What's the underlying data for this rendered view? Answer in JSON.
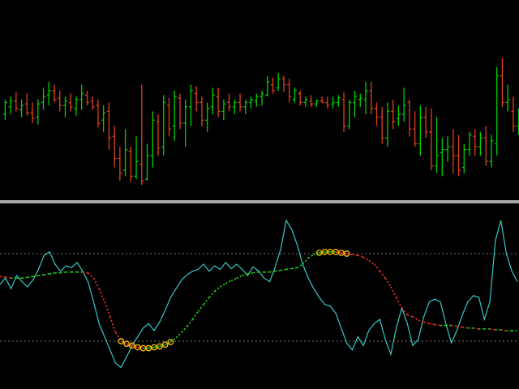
{
  "colors": {
    "background": "#000000",
    "bull": "#00d000",
    "bear": "#e0401e",
    "separator": "#a8a8a8",
    "oscillator": "#38c8c8",
    "signal_up": "#20e020",
    "signal_down": "#ff3030",
    "marker_ring": "#ffc000",
    "level_line": "#7a7a7a"
  },
  "chart_data": [
    {
      "type": "ohlc",
      "grid": false,
      "ylim": [
        0,
        100
      ],
      "bars": [
        [
          50,
          46,
          60,
          58
        ],
        [
          55,
          50,
          62,
          59
        ],
        [
          59,
          52,
          65,
          54
        ],
        [
          53,
          48,
          60,
          56
        ],
        [
          57,
          49,
          64,
          51
        ],
        [
          51,
          44,
          58,
          47
        ],
        [
          48,
          43,
          60,
          57
        ],
        [
          58,
          53,
          68,
          62
        ],
        [
          63,
          56,
          72,
          66
        ],
        [
          66,
          58,
          70,
          60
        ],
        [
          61,
          52,
          66,
          56
        ],
        [
          56,
          48,
          62,
          59
        ],
        [
          58,
          52,
          64,
          55
        ],
        [
          54,
          49,
          62,
          60
        ],
        [
          60,
          53,
          70,
          64
        ],
        [
          63,
          56,
          66,
          58
        ],
        [
          59,
          53,
          62,
          55
        ],
        [
          56,
          41,
          60,
          44
        ],
        [
          46,
          38,
          56,
          51
        ],
        [
          52,
          26,
          58,
          34
        ],
        [
          35,
          14,
          42,
          20
        ],
        [
          20,
          5,
          28,
          10
        ],
        [
          12,
          8,
          40,
          26
        ],
        [
          25,
          4,
          28,
          8
        ],
        [
          8,
          6,
          35,
          18
        ],
        [
          16,
          2,
          70,
          5
        ],
        [
          6,
          5,
          30,
          22
        ],
        [
          22,
          14,
          52,
          46
        ],
        [
          45,
          22,
          50,
          27
        ],
        [
          28,
          22,
          63,
          58
        ],
        [
          56,
          35,
          61,
          40
        ],
        [
          42,
          32,
          66,
          62
        ],
        [
          61,
          40,
          64,
          44
        ],
        [
          44,
          28,
          60,
          55
        ],
        [
          55,
          42,
          70,
          66
        ],
        [
          64,
          52,
          69,
          58
        ],
        [
          58,
          42,
          62,
          46
        ],
        [
          46,
          38,
          58,
          54
        ],
        [
          55,
          50,
          68,
          63
        ],
        [
          62,
          48,
          68,
          52
        ],
        [
          52,
          46,
          60,
          57
        ],
        [
          58,
          52,
          64,
          55
        ],
        [
          55,
          50,
          60,
          58
        ],
        [
          58,
          52,
          64,
          55
        ],
        [
          55,
          50,
          60,
          58
        ],
        [
          58,
          54,
          62,
          60
        ],
        [
          59,
          55,
          64,
          62
        ],
        [
          62,
          56,
          66,
          64
        ],
        [
          63,
          62,
          76,
          72
        ],
        [
          70,
          64,
          75,
          66
        ],
        [
          68,
          66,
          78,
          74
        ],
        [
          74,
          65,
          76,
          70
        ],
        [
          70,
          58,
          74,
          62
        ],
        [
          60,
          58,
          68,
          66
        ],
        [
          64,
          56,
          66,
          58
        ],
        [
          58,
          55,
          62,
          60
        ],
        [
          59,
          55,
          63,
          57
        ],
        [
          57,
          55,
          60,
          59
        ],
        [
          59,
          58,
          62,
          58
        ],
        [
          58,
          54,
          62,
          56
        ],
        [
          57,
          54,
          62,
          58
        ],
        [
          58,
          55,
          63,
          61
        ],
        [
          60,
          38,
          65,
          42
        ],
        [
          42,
          40,
          60,
          58
        ],
        [
          58,
          48,
          66,
          62
        ],
        [
          60,
          55,
          64,
          61
        ],
        [
          60,
          50,
          72,
          66
        ],
        [
          66,
          50,
          72,
          54
        ],
        [
          54,
          42,
          58,
          48
        ],
        [
          48,
          30,
          55,
          34
        ],
        [
          34,
          28,
          58,
          52
        ],
        [
          52,
          40,
          60,
          45
        ],
        [
          47,
          42,
          56,
          50
        ],
        [
          50,
          45,
          68,
          56
        ],
        [
          58,
          35,
          60,
          40
        ],
        [
          40,
          28,
          52,
          30
        ],
        [
          30,
          22,
          56,
          48
        ],
        [
          48,
          34,
          55,
          38
        ],
        [
          38,
          12,
          54,
          15
        ],
        [
          15,
          10,
          48,
          22
        ],
        [
          24,
          8,
          34,
          26
        ],
        [
          26,
          18,
          35,
          28
        ],
        [
          28,
          10,
          40,
          22
        ],
        [
          22,
          8,
          36,
          12
        ],
        [
          14,
          10,
          30,
          26
        ],
        [
          26,
          22,
          38,
          36
        ],
        [
          35,
          22,
          40,
          28
        ],
        [
          28,
          22,
          38,
          34
        ],
        [
          34,
          15,
          42,
          18
        ],
        [
          18,
          14,
          36,
          32
        ],
        [
          30,
          22,
          82,
          76
        ],
        [
          76,
          55,
          88,
          58
        ],
        [
          58,
          52,
          70,
          60
        ],
        [
          52,
          38,
          62,
          42
        ],
        [
          42,
          36,
          54,
          50
        ]
      ]
    },
    {
      "type": "line",
      "grid": false,
      "ylim": [
        -100,
        100
      ],
      "levels": [
        50,
        -50
      ],
      "oscillator": [
        15,
        22,
        10,
        25,
        18,
        12,
        20,
        32,
        48,
        52,
        38,
        30,
        36,
        34,
        40,
        30,
        18,
        -5,
        -30,
        -45,
        -60,
        -75,
        -80,
        -68,
        -55,
        -45,
        -35,
        -30,
        -38,
        -28,
        -15,
        0,
        10,
        20,
        26,
        30,
        32,
        38,
        30,
        36,
        32,
        40,
        33,
        38,
        32,
        25,
        35,
        30,
        22,
        18,
        35,
        55,
        88,
        78,
        60,
        38,
        22,
        10,
        0,
        -8,
        -10,
        -18,
        -35,
        -52,
        -60,
        -45,
        -55,
        -38,
        -30,
        -25,
        -48,
        -65,
        -35,
        -12,
        -30,
        -55,
        -48,
        -22,
        -5,
        -2,
        -5,
        -30,
        -52,
        -38,
        -20,
        -5,
        2,
        0,
        -25,
        -5,
        65,
        88,
        50,
        30,
        18
      ],
      "signal": [
        24,
        23,
        22,
        22,
        22,
        23,
        24,
        25,
        26,
        27,
        28,
        28,
        29,
        29,
        29,
        29,
        28,
        22,
        10,
        -5,
        -22,
        -40,
        -50,
        -53,
        -55,
        -57,
        -58,
        -58,
        -57,
        -56,
        -54,
        -51,
        -46,
        -40,
        -33,
        -25,
        -16,
        -8,
        0,
        7,
        12,
        16,
        19,
        22,
        25,
        27,
        28,
        29,
        29,
        29,
        30,
        31,
        32,
        33,
        34,
        38,
        45,
        49,
        51,
        52,
        52,
        52,
        51,
        50,
        49,
        48,
        46,
        42,
        38,
        30,
        22,
        12,
        0,
        -12,
        -20,
        -22,
        -26,
        -28,
        -30,
        -31,
        -32,
        -32,
        -32,
        -33,
        -34,
        -35,
        -35,
        -36,
        -36,
        -36,
        -37,
        -37,
        -38,
        -38,
        -38
      ]
    }
  ]
}
